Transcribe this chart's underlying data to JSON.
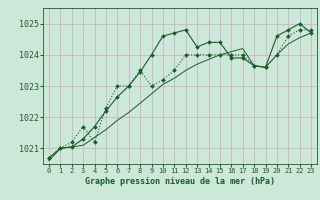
{
  "title": "Graphe pression niveau de la mer (hPa)",
  "background_color": "#cce8d8",
  "grid_color": "#d0a8c0",
  "line_color": "#1a5c28",
  "ylim": [
    1020.5,
    1025.5
  ],
  "xlim": [
    -0.5,
    23.5
  ],
  "yticks": [
    1021,
    1022,
    1023,
    1024,
    1025
  ],
  "xticks": [
    0,
    1,
    2,
    3,
    4,
    5,
    6,
    7,
    8,
    9,
    10,
    11,
    12,
    13,
    14,
    15,
    16,
    17,
    18,
    19,
    20,
    21,
    22,
    23
  ],
  "series1": [
    1020.7,
    1021.0,
    1021.05,
    1021.3,
    1021.7,
    1022.2,
    1022.65,
    1023.0,
    1023.45,
    1024.0,
    1024.6,
    1024.7,
    1024.8,
    1024.25,
    1024.4,
    1024.4,
    1023.9,
    1023.9,
    1023.65,
    1023.6,
    1024.6,
    1024.8,
    1025.0,
    1024.7
  ],
  "series2": [
    1020.7,
    1021.0,
    1021.2,
    1021.7,
    1021.2,
    1022.3,
    1023.0,
    1023.0,
    1023.5,
    1023.0,
    1023.2,
    1023.5,
    1024.0,
    1024.0,
    1024.0,
    1024.0,
    1024.0,
    1024.0,
    1023.65,
    1023.6,
    1024.0,
    1024.6,
    1024.8,
    1024.8
  ],
  "series3": [
    1020.6,
    1021.0,
    1021.05,
    1021.1,
    1021.35,
    1021.6,
    1021.9,
    1022.15,
    1022.45,
    1022.75,
    1023.05,
    1023.25,
    1023.5,
    1023.7,
    1023.85,
    1024.0,
    1024.1,
    1024.2,
    1023.65,
    1023.6,
    1024.0,
    1024.35,
    1024.55,
    1024.7
  ]
}
